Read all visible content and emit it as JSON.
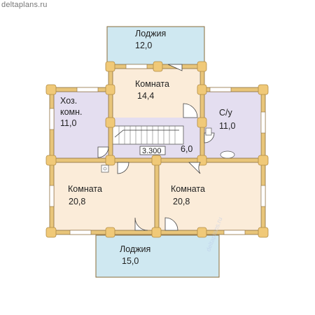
{
  "site": "deltaplans.ru",
  "watermark": "deltaplans.ru",
  "colors": {
    "loggia": "#cfe8f1",
    "room": "#fbecd9",
    "utility": "#e4def0",
    "hall": "#e4def0",
    "log": "#f0c978",
    "log_edge": "#b28c43",
    "wall_line": "#8a6c3a"
  },
  "rooms": {
    "loggia_top": {
      "name": "Лоджия",
      "area": "12,0"
    },
    "room_top": {
      "name": "Комната",
      "area": "14,4"
    },
    "utility": {
      "name_line1": "Хоз.",
      "name_line2": "комн.",
      "area": "11,0"
    },
    "bathroom": {
      "name": "С/у",
      "area": "11,0"
    },
    "hall": {
      "area": "6,0"
    },
    "room_left": {
      "name": "Комната",
      "area": "20,8"
    },
    "room_right": {
      "name": "Комната",
      "area": "20,8"
    },
    "loggia_bottom": {
      "name": "Лоджия",
      "area": "15,0"
    }
  },
  "level_mark": "3.300"
}
